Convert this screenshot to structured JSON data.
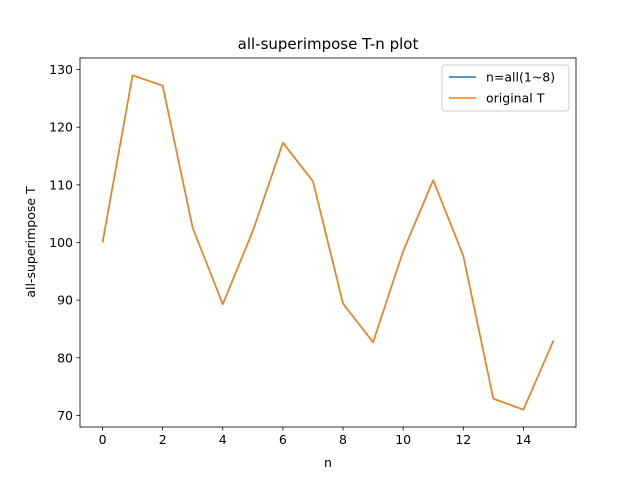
{
  "chart_data": {
    "type": "line",
    "title": "all-superimpose T-n plot",
    "xlabel": "n",
    "ylabel": "all-superimpose T",
    "xlim": [
      -0.75,
      15.75
    ],
    "ylim": [
      68.0,
      132.0
    ],
    "xticks": [
      0,
      2,
      4,
      6,
      8,
      10,
      12,
      14
    ],
    "yticks": [
      70,
      80,
      90,
      100,
      110,
      120,
      130
    ],
    "grid": false,
    "legend_position": "top-right",
    "x": [
      0,
      1,
      2,
      3,
      4,
      5,
      6,
      7,
      8,
      9,
      10,
      11,
      12,
      13,
      14,
      15
    ],
    "series": [
      {
        "name": "n=all(1~8)",
        "color": "#1f77b4",
        "values": [
          100.0,
          129.0,
          127.2,
          102.5,
          89.3,
          102.0,
          117.3,
          110.6,
          89.4,
          82.7,
          98.5,
          110.8,
          97.7,
          72.9,
          71.0,
          83.0
        ]
      },
      {
        "name": "original T",
        "color": "#ff7f0e",
        "values": [
          100.0,
          129.0,
          127.2,
          102.5,
          89.3,
          102.0,
          117.3,
          110.6,
          89.4,
          82.7,
          98.5,
          110.8,
          97.7,
          72.9,
          71.0,
          83.0
        ]
      }
    ]
  }
}
